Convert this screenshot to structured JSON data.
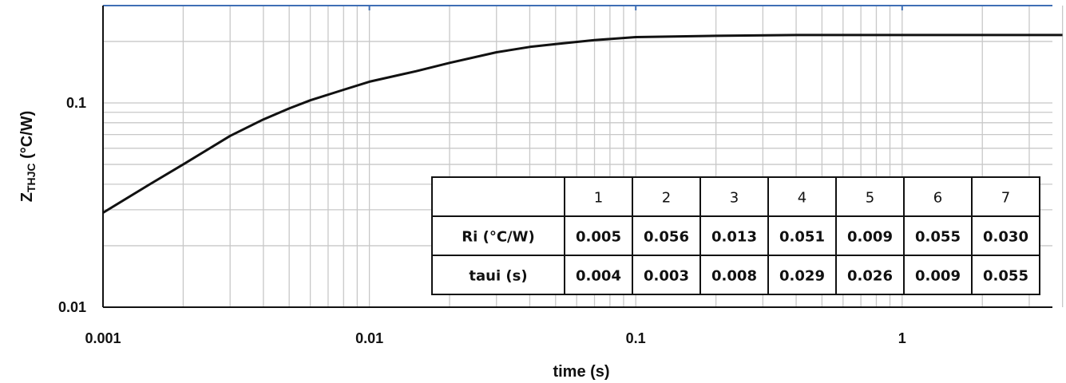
{
  "chart_data": {
    "type": "line",
    "x_scale": "log",
    "y_scale": "log",
    "xlim": [
      0.001,
      4
    ],
    "ylim": [
      0.01,
      0.3
    ],
    "xlabel": "time (s)",
    "ylabel_main": "Z",
    "ylabel_sub": "THJC",
    "ylabel_unit": " (°C/W)",
    "x_ticks": [
      {
        "value": 0.001,
        "label": "0.001"
      },
      {
        "value": 0.01,
        "label": "0.01"
      },
      {
        "value": 0.1,
        "label": "0.1"
      },
      {
        "value": 1,
        "label": "1"
      }
    ],
    "y_ticks": [
      {
        "value": 0.01,
        "label": "0.01"
      },
      {
        "value": 0.1,
        "label": "0.1"
      }
    ],
    "grid": true,
    "series": [
      {
        "color": "#111111",
        "x": [
          0.001,
          0.0015,
          0.002,
          0.003,
          0.004,
          0.005,
          0.006,
          0.008,
          0.01,
          0.015,
          0.02,
          0.03,
          0.04,
          0.05,
          0.07,
          0.1,
          0.2,
          0.4,
          1,
          2,
          4
        ],
        "y": [
          0.029,
          0.04,
          0.05,
          0.069,
          0.083,
          0.094,
          0.103,
          0.116,
          0.127,
          0.143,
          0.157,
          0.177,
          0.188,
          0.194,
          0.203,
          0.21,
          0.213,
          0.215,
          0.215,
          0.215,
          0.215
        ]
      }
    ],
    "table": {
      "headers": [
        "",
        "1",
        "2",
        "3",
        "4",
        "5",
        "6",
        "7"
      ],
      "rows": [
        [
          "Ri (°C/W)",
          "0.005",
          "0.056",
          "0.013",
          "0.051",
          "0.009",
          "0.055",
          "0.030"
        ],
        [
          "taui (s)",
          "0.004",
          "0.003",
          "0.008",
          "0.029",
          "0.026",
          "0.009",
          "0.055"
        ]
      ]
    },
    "colors": {
      "grid": "#c8c8c8",
      "axis": "#111111",
      "top_border": "#3f6fb5"
    }
  }
}
